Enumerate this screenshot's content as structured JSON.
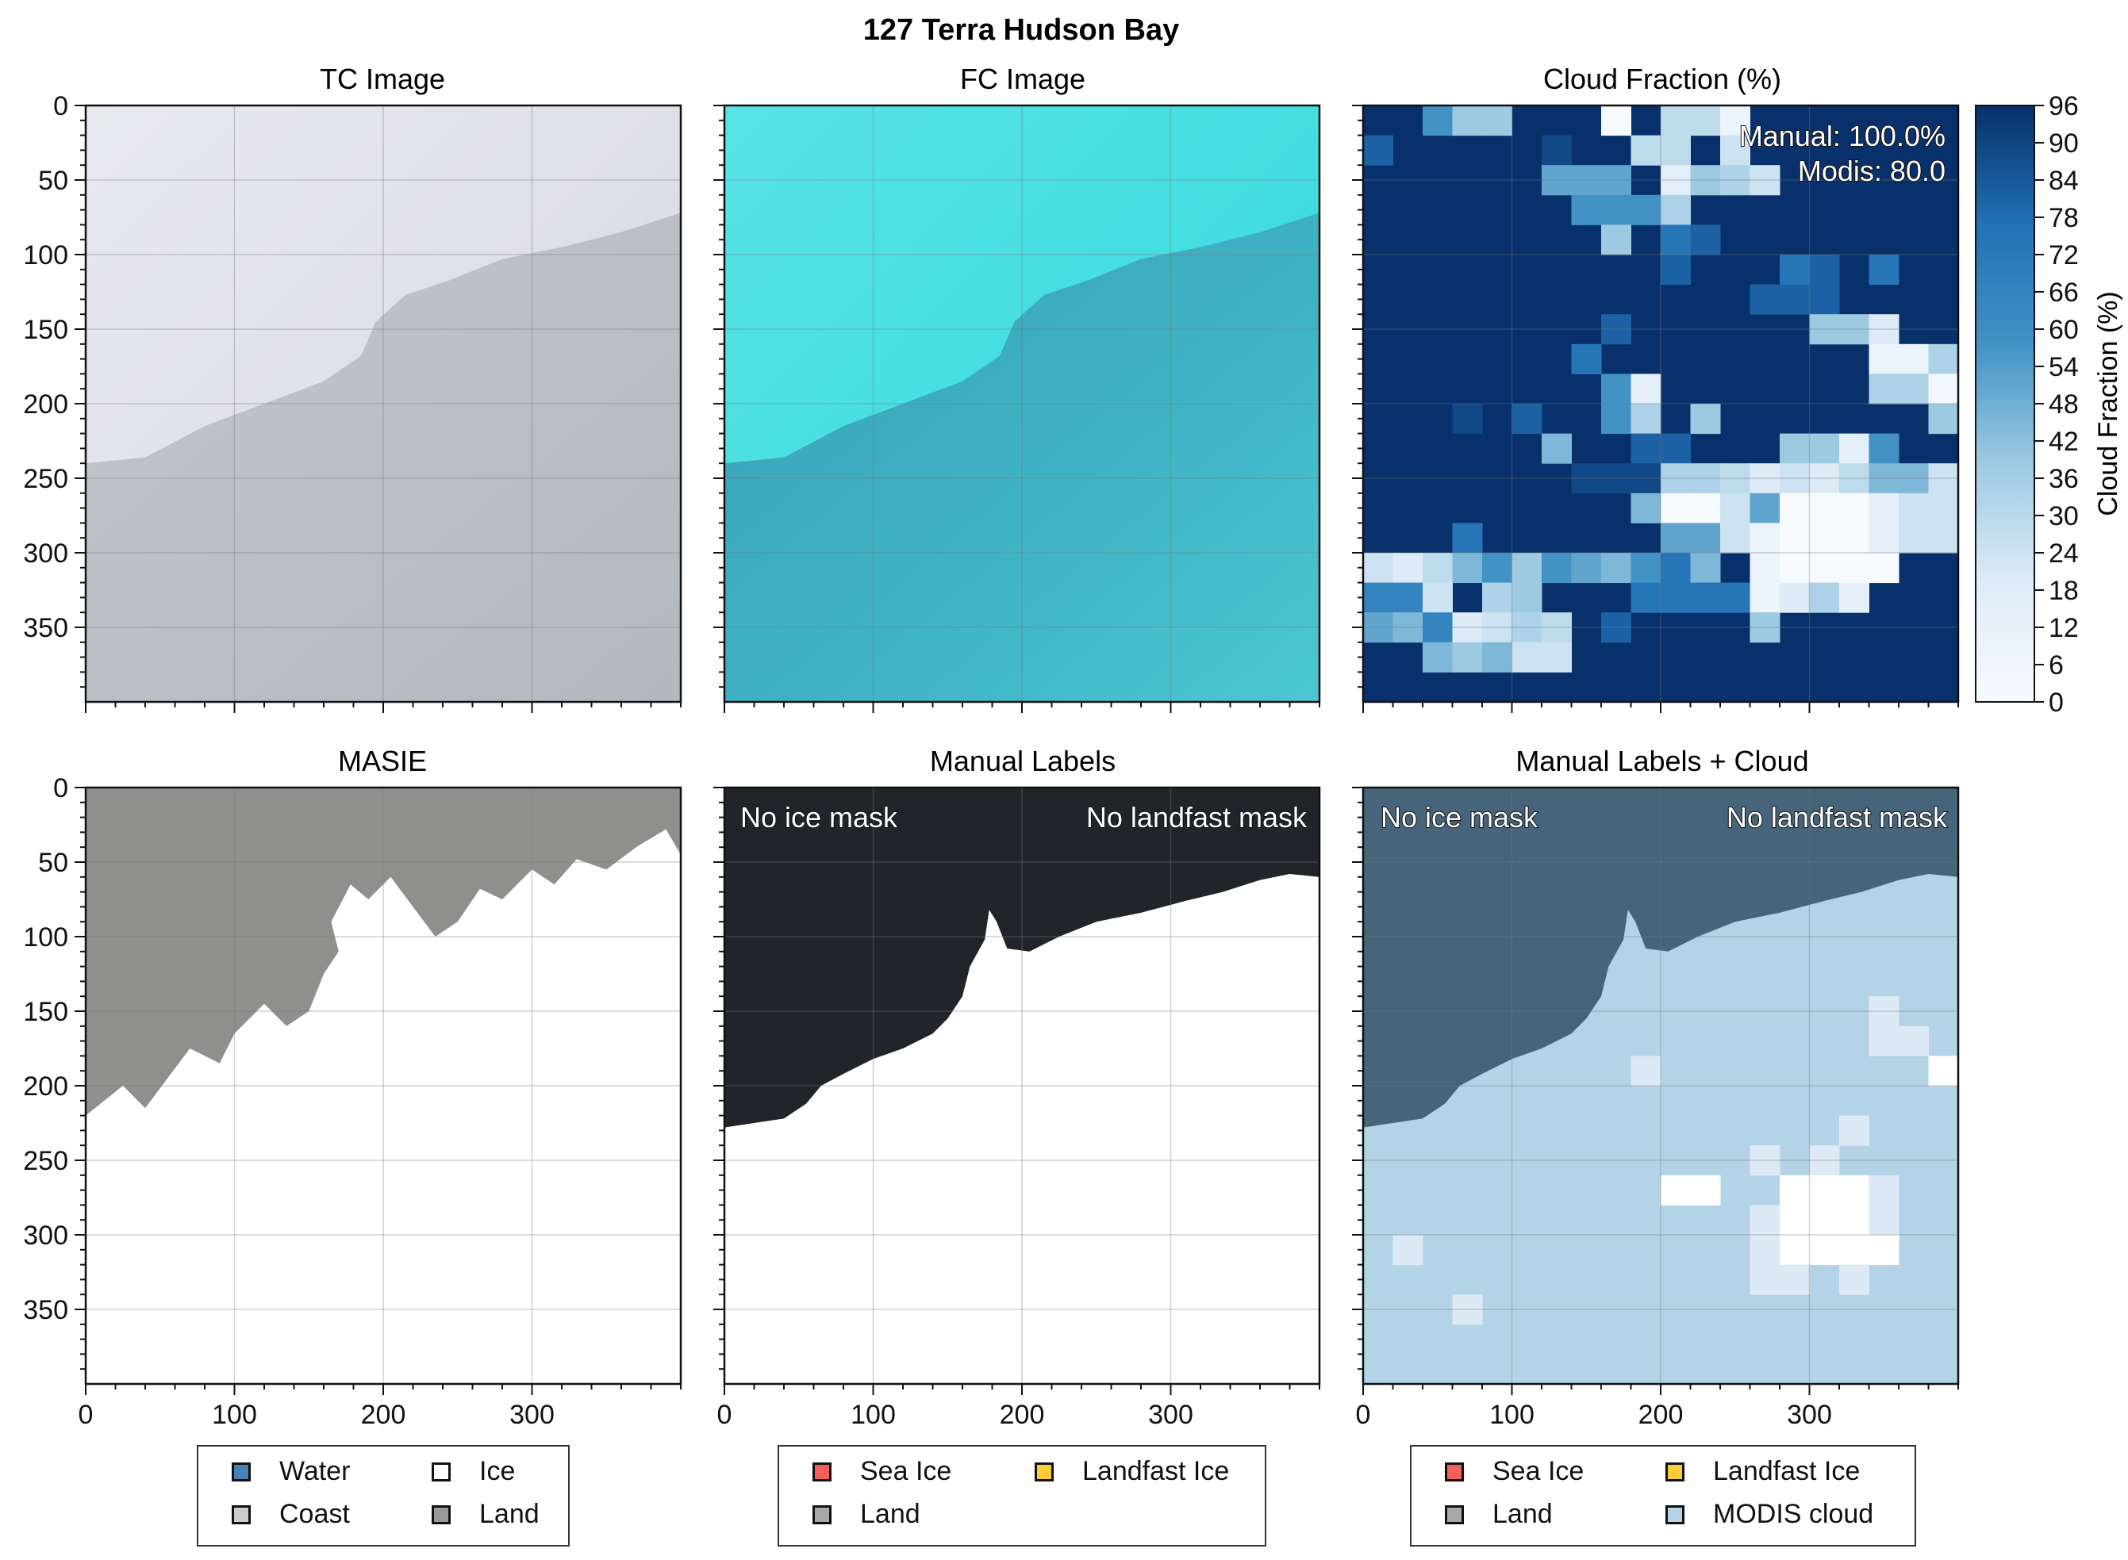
{
  "figure_title": "127 Terra Hudson Bay",
  "colors": {
    "tc_bg": "#dadce6",
    "fc_bg": "#3fd9dc",
    "masie_land": "#8f908d",
    "manual_dark": "#212428",
    "mlc_dark": "#46647a",
    "mlc_light": "#b3d4e7",
    "cloud_dark": "#08306b"
  },
  "chart_data": [
    {
      "type": "image",
      "title": "TC Image",
      "xlim": [
        0,
        400
      ],
      "ylim": [
        400,
        0
      ],
      "yticks": [
        0,
        50,
        100,
        150,
        200,
        250,
        300,
        350
      ],
      "xticks": [
        0,
        100,
        200,
        300
      ],
      "show_x_tick_labels": false,
      "coastline": [
        [
          0,
          240
        ],
        [
          40,
          236
        ],
        [
          80,
          215
        ],
        [
          120,
          200
        ],
        [
          160,
          185
        ],
        [
          185,
          168
        ],
        [
          195,
          145
        ],
        [
          215,
          127
        ],
        [
          245,
          117
        ],
        [
          280,
          103
        ],
        [
          320,
          95
        ],
        [
          360,
          85
        ],
        [
          400,
          72
        ]
      ]
    },
    {
      "type": "image",
      "title": "FC Image",
      "xlim": [
        0,
        400
      ],
      "ylim": [
        400,
        0
      ],
      "xticks": [
        0,
        100,
        200,
        300
      ],
      "show_x_tick_labels": false,
      "show_y_tick_labels": false
    },
    {
      "type": "heatmap",
      "title": "Cloud Fraction (%)",
      "xlim": [
        0,
        400
      ],
      "ylim": [
        400,
        0
      ],
      "xticks": [
        0,
        100,
        200,
        300
      ],
      "annotations": [
        "Manual: 100.0%",
        "Modis: 80.0"
      ],
      "colorbar": {
        "label": "Cloud Fraction (%)",
        "ticks": [
          0,
          6,
          12,
          18,
          24,
          30,
          36,
          42,
          48,
          54,
          60,
          66,
          72,
          78,
          84,
          90,
          96
        ],
        "colormap": "Blues"
      },
      "cell_size": 20,
      "default_value": 96,
      "cells": [
        [
          2,
          0,
          66
        ],
        [
          3,
          0,
          48
        ],
        [
          4,
          0,
          48
        ],
        [
          8,
          0,
          0
        ],
        [
          10,
          0,
          36
        ],
        [
          11,
          0,
          36
        ],
        [
          12,
          0,
          12
        ],
        [
          0,
          1,
          84
        ],
        [
          6,
          1,
          90
        ],
        [
          9,
          1,
          36
        ],
        [
          10,
          1,
          36
        ],
        [
          12,
          1,
          30
        ],
        [
          6,
          2,
          60
        ],
        [
          7,
          2,
          60
        ],
        [
          8,
          2,
          60
        ],
        [
          10,
          2,
          18
        ],
        [
          11,
          2,
          48
        ],
        [
          12,
          2,
          42
        ],
        [
          13,
          2,
          30
        ],
        [
          7,
          3,
          66
        ],
        [
          8,
          3,
          66
        ],
        [
          9,
          3,
          66
        ],
        [
          10,
          3,
          42
        ],
        [
          8,
          4,
          48
        ],
        [
          10,
          4,
          78
        ],
        [
          11,
          4,
          84
        ],
        [
          10,
          5,
          84
        ],
        [
          14,
          5,
          78
        ],
        [
          15,
          5,
          84
        ],
        [
          17,
          5,
          78
        ],
        [
          13,
          6,
          84
        ],
        [
          14,
          6,
          84
        ],
        [
          15,
          6,
          84
        ],
        [
          8,
          7,
          84
        ],
        [
          15,
          7,
          48
        ],
        [
          16,
          7,
          48
        ],
        [
          17,
          7,
          24
        ],
        [
          7,
          8,
          78
        ],
        [
          17,
          8,
          12
        ],
        [
          18,
          8,
          12
        ],
        [
          19,
          8,
          42
        ],
        [
          8,
          9,
          66
        ],
        [
          9,
          9,
          18
        ],
        [
          17,
          9,
          42
        ],
        [
          18,
          9,
          42
        ],
        [
          19,
          9,
          6
        ],
        [
          19,
          10,
          48
        ],
        [
          3,
          10,
          90
        ],
        [
          5,
          10,
          84
        ],
        [
          8,
          10,
          66
        ],
        [
          9,
          10,
          42
        ],
        [
          11,
          10,
          48
        ],
        [
          6,
          11,
          54
        ],
        [
          9,
          11,
          84
        ],
        [
          10,
          11,
          84
        ],
        [
          14,
          11,
          48
        ],
        [
          15,
          11,
          48
        ],
        [
          16,
          11,
          18
        ],
        [
          17,
          11,
          66
        ],
        [
          7,
          12,
          90
        ],
        [
          8,
          12,
          90
        ],
        [
          9,
          12,
          90
        ],
        [
          10,
          12,
          42
        ],
        [
          11,
          12,
          42
        ],
        [
          12,
          12,
          36
        ],
        [
          13,
          12,
          24
        ],
        [
          14,
          12,
          30
        ],
        [
          15,
          12,
          24
        ],
        [
          16,
          12,
          36
        ],
        [
          17,
          12,
          54
        ],
        [
          18,
          12,
          54
        ],
        [
          19,
          12,
          30
        ],
        [
          9,
          13,
          54
        ],
        [
          10,
          13,
          0
        ],
        [
          11,
          13,
          0
        ],
        [
          12,
          13,
          30
        ],
        [
          13,
          13,
          60
        ],
        [
          14,
          13,
          0
        ],
        [
          15,
          13,
          0
        ],
        [
          16,
          13,
          0
        ],
        [
          17,
          13,
          18
        ],
        [
          18,
          13,
          30
        ],
        [
          19,
          13,
          30
        ],
        [
          3,
          14,
          78
        ],
        [
          10,
          14,
          60
        ],
        [
          11,
          14,
          60
        ],
        [
          12,
          14,
          30
        ],
        [
          13,
          14,
          12
        ],
        [
          14,
          14,
          0
        ],
        [
          15,
          14,
          0
        ],
        [
          16,
          14,
          0
        ],
        [
          17,
          14,
          18
        ],
        [
          18,
          14,
          30
        ],
        [
          19,
          14,
          30
        ],
        [
          0,
          15,
          30
        ],
        [
          1,
          15,
          24
        ],
        [
          2,
          15,
          36
        ],
        [
          3,
          15,
          54
        ],
        [
          4,
          15,
          66
        ],
        [
          5,
          15,
          48
        ],
        [
          6,
          15,
          66
        ],
        [
          7,
          15,
          60
        ],
        [
          8,
          15,
          54
        ],
        [
          9,
          15,
          66
        ],
        [
          10,
          15,
          78
        ],
        [
          11,
          15,
          54
        ],
        [
          13,
          15,
          12
        ],
        [
          14,
          15,
          0
        ],
        [
          15,
          15,
          0
        ],
        [
          16,
          15,
          0
        ],
        [
          17,
          15,
          0
        ],
        [
          0,
          16,
          72
        ],
        [
          1,
          16,
          72
        ],
        [
          2,
          16,
          30
        ],
        [
          4,
          16,
          42
        ],
        [
          5,
          16,
          48
        ],
        [
          9,
          16,
          78
        ],
        [
          10,
          16,
          78
        ],
        [
          11,
          16,
          78
        ],
        [
          12,
          16,
          78
        ],
        [
          13,
          16,
          12
        ],
        [
          14,
          16,
          24
        ],
        [
          15,
          16,
          42
        ],
        [
          16,
          16,
          18
        ],
        [
          0,
          17,
          60
        ],
        [
          1,
          17,
          54
        ],
        [
          2,
          17,
          72
        ],
        [
          3,
          17,
          24
        ],
        [
          4,
          17,
          30
        ],
        [
          5,
          17,
          42
        ],
        [
          6,
          17,
          36
        ],
        [
          8,
          17,
          84
        ],
        [
          13,
          17,
          48
        ],
        [
          2,
          18,
          54
        ],
        [
          3,
          18,
          48
        ],
        [
          4,
          18,
          54
        ],
        [
          5,
          18,
          30
        ],
        [
          6,
          18,
          30
        ]
      ]
    },
    {
      "type": "map",
      "title": "MASIE",
      "xlim": [
        0,
        400
      ],
      "ylim": [
        400,
        0
      ],
      "xticks": [
        0,
        100,
        200,
        300
      ],
      "yticks": [
        0,
        50,
        100,
        150,
        200,
        250,
        300,
        350
      ],
      "boundary": [
        [
          0,
          0
        ],
        [
          400,
          0
        ],
        [
          400,
          45
        ],
        [
          390,
          28
        ],
        [
          370,
          40
        ],
        [
          350,
          55
        ],
        [
          330,
          48
        ],
        [
          315,
          65
        ],
        [
          300,
          55
        ],
        [
          280,
          75
        ],
        [
          265,
          68
        ],
        [
          250,
          90
        ],
        [
          235,
          100
        ],
        [
          220,
          80
        ],
        [
          205,
          60
        ],
        [
          190,
          75
        ],
        [
          178,
          65
        ],
        [
          165,
          90
        ],
        [
          170,
          110
        ],
        [
          160,
          125
        ],
        [
          150,
          150
        ],
        [
          135,
          160
        ],
        [
          120,
          145
        ],
        [
          100,
          165
        ],
        [
          90,
          185
        ],
        [
          70,
          175
        ],
        [
          55,
          195
        ],
        [
          40,
          215
        ],
        [
          25,
          200
        ],
        [
          0,
          220
        ]
      ],
      "legend": [
        {
          "label": "Water",
          "color": "#4a80b5"
        },
        {
          "label": "Ice",
          "color": "#ffffff"
        },
        {
          "label": "Coast",
          "color": "#cccccc"
        },
        {
          "label": "Land",
          "color": "#9a9a9a"
        }
      ]
    },
    {
      "type": "map",
      "title": "Manual Labels",
      "xlim": [
        0,
        400
      ],
      "ylim": [
        400,
        0
      ],
      "xticks": [
        0,
        100,
        200,
        300
      ],
      "annotations": [
        "No ice mask",
        "No landfast mask"
      ],
      "boundary": [
        [
          0,
          0
        ],
        [
          400,
          0
        ],
        [
          400,
          60
        ],
        [
          380,
          58
        ],
        [
          360,
          62
        ],
        [
          335,
          70
        ],
        [
          310,
          76
        ],
        [
          280,
          84
        ],
        [
          250,
          90
        ],
        [
          225,
          100
        ],
        [
          205,
          110
        ],
        [
          190,
          108
        ],
        [
          183,
          90
        ],
        [
          178,
          82
        ],
        [
          175,
          102
        ],
        [
          165,
          120
        ],
        [
          160,
          140
        ],
        [
          150,
          155
        ],
        [
          140,
          165
        ],
        [
          120,
          175
        ],
        [
          100,
          182
        ],
        [
          80,
          192
        ],
        [
          65,
          200
        ],
        [
          55,
          212
        ],
        [
          40,
          222
        ],
        [
          20,
          225
        ],
        [
          0,
          228
        ]
      ],
      "legend": [
        {
          "label": "Sea Ice",
          "color": "#f25f5c"
        },
        {
          "label": "Landfast Ice",
          "color": "#ffcc33"
        },
        {
          "label": "Land",
          "color": "#a8a8a8"
        }
      ]
    },
    {
      "type": "map",
      "title": "Manual Labels + Cloud",
      "xlim": [
        0,
        400
      ],
      "ylim": [
        400,
        0
      ],
      "xticks": [
        0,
        100,
        200,
        300
      ],
      "annotations": [
        "No ice mask",
        "No landfast mask"
      ],
      "legend": [
        {
          "label": "Sea Ice",
          "color": "#f25f5c"
        },
        {
          "label": "Landfast Ice",
          "color": "#ffcc33"
        },
        {
          "label": "Land",
          "color": "#a8a8a8"
        },
        {
          "label": "MODIS cloud",
          "color": "#b3d4e7"
        }
      ]
    }
  ]
}
